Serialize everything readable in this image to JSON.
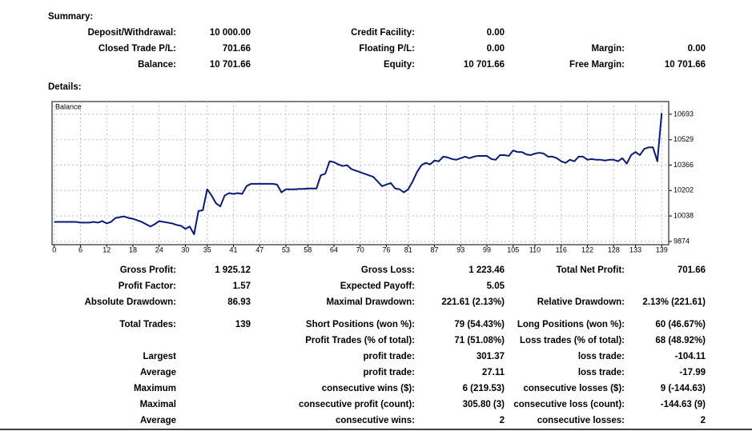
{
  "summary": {
    "title": "Summary:",
    "rows": [
      [
        {
          "label": "Deposit/Withdrawal:",
          "value": "10 000.00"
        },
        {
          "label": "Credit Facility:",
          "value": "0.00"
        },
        null
      ],
      [
        {
          "label": "Closed Trade P/L:",
          "value": "701.66"
        },
        {
          "label": "Floating P/L:",
          "value": "0.00"
        },
        {
          "label": "Margin:",
          "value": "0.00"
        }
      ],
      [
        {
          "label": "Balance:",
          "value": "10 701.66"
        },
        {
          "label": "Equity:",
          "value": "10 701.66"
        },
        {
          "label": "Free Margin:",
          "value": "10 701.66"
        }
      ]
    ]
  },
  "details": {
    "title": "Details:"
  },
  "chart_data": {
    "type": "line",
    "series": [
      {
        "name": "Balance",
        "color": "#0b1a78",
        "values": [
          10000,
          10000,
          10000,
          10000,
          10000,
          10000,
          9995,
          9995,
          9995,
          10000,
          9995,
          10005,
          9990,
          10000,
          10025,
          10030,
          10035,
          10025,
          10020,
          10010,
          10000,
          9985,
          9970,
          9985,
          10005,
          10000,
          9995,
          9990,
          9980,
          9975,
          9955,
          9970,
          9920,
          10070,
          10075,
          10210,
          10170,
          10120,
          10100,
          10170,
          10185,
          10180,
          10185,
          10180,
          10230,
          10245,
          10245,
          10245,
          10245,
          10245,
          10245,
          10240,
          10190,
          10210,
          10210,
          10210,
          10212,
          10212,
          10215,
          10215,
          10215,
          10300,
          10310,
          10390,
          10385,
          10370,
          10360,
          10365,
          10340,
          10330,
          10320,
          10310,
          10300,
          10290,
          10260,
          10230,
          10240,
          10250,
          10215,
          10210,
          10190,
          10210,
          10260,
          10320,
          10365,
          10380,
          10370,
          10395,
          10390,
          10420,
          10415,
          10405,
          10400,
          10410,
          10420,
          10410,
          10420,
          10425,
          10425,
          10425,
          10405,
          10400,
          10430,
          10430,
          10425,
          10460,
          10450,
          10450,
          10435,
          10430,
          10440,
          10445,
          10440,
          10420,
          10420,
          10410,
          10390,
          10380,
          10400,
          10390,
          10420,
          10420,
          10400,
          10405,
          10400,
          10400,
          10395,
          10400,
          10400,
          10390,
          10410,
          10375,
          10430,
          10450,
          10430,
          10470,
          10480,
          10480,
          10390,
          10701.66
        ]
      }
    ],
    "x": [
      0,
      1,
      2,
      3,
      4,
      5,
      6,
      7,
      8,
      9,
      10,
      11,
      12,
      13,
      14,
      15,
      16,
      17,
      18,
      19,
      20,
      21,
      22,
      23,
      24,
      25,
      26,
      27,
      28,
      29,
      30,
      31,
      32,
      33,
      34,
      35,
      36,
      37,
      38,
      39,
      40,
      41,
      42,
      43,
      44,
      45,
      46,
      47,
      48,
      49,
      50,
      51,
      52,
      53,
      54,
      55,
      56,
      57,
      58,
      59,
      60,
      61,
      62,
      63,
      64,
      65,
      66,
      67,
      68,
      69,
      70,
      71,
      72,
      73,
      74,
      75,
      76,
      77,
      78,
      79,
      80,
      81,
      82,
      83,
      84,
      85,
      86,
      87,
      88,
      89,
      90,
      91,
      92,
      93,
      94,
      95,
      96,
      97,
      98,
      99,
      100,
      101,
      102,
      103,
      104,
      105,
      106,
      107,
      108,
      109,
      110,
      111,
      112,
      113,
      114,
      115,
      116,
      117,
      118,
      119,
      120,
      121,
      122,
      123,
      124,
      125,
      126,
      127,
      128,
      129,
      130,
      131,
      132,
      133,
      134,
      135,
      136,
      137,
      138,
      139
    ],
    "xlim": [
      -0.5,
      140.6
    ],
    "xticks": [
      0,
      6,
      12,
      18,
      24,
      30,
      35,
      41,
      47,
      53,
      58,
      64,
      70,
      76,
      81,
      87,
      93,
      99,
      105,
      110,
      116,
      122,
      128,
      133,
      139
    ],
    "ylim": [
      9853,
      10775
    ],
    "yticks": [
      9874,
      10038,
      10202,
      10366,
      10529,
      10693
    ],
    "grid": true
  },
  "stats": {
    "rows": [
      [
        {
          "label": "Gross Profit:",
          "value": "1 925.12"
        },
        {
          "label": "Gross Loss:",
          "value": "1 223.46"
        },
        {
          "label": "Total Net Profit:",
          "value": "701.66"
        }
      ],
      [
        {
          "label": "Profit Factor:",
          "value": "1.57"
        },
        {
          "label": "Expected Payoff:",
          "value": "5.05"
        },
        null
      ],
      [
        {
          "label": "Absolute Drawdown:",
          "value": "86.93"
        },
        {
          "label": "Maximal Drawdown:",
          "value": "221.61 (2.13%)"
        },
        {
          "label": "Relative Drawdown:",
          "value": "2.13% (221.61)"
        }
      ],
      [
        {
          "label": "Total Trades:",
          "value": "139"
        },
        {
          "label": "Short Positions (won %):",
          "value": "79 (54.43%)"
        },
        {
          "label": "Long Positions (won %):",
          "value": "60 (46.67%)"
        }
      ],
      [
        null,
        {
          "label": "Profit Trades (% of total):",
          "value": "71 (51.08%)"
        },
        {
          "label": "Loss trades (% of total):",
          "value": "68 (48.92%)"
        }
      ],
      [
        {
          "label": "Largest"
        },
        {
          "label": "profit trade:",
          "value": "301.37"
        },
        {
          "label": "loss trade:",
          "value": "-104.11"
        }
      ],
      [
        {
          "label": "Average"
        },
        {
          "label": "profit trade:",
          "value": "27.11"
        },
        {
          "label": "loss trade:",
          "value": "-17.99"
        }
      ],
      [
        {
          "label": "Maximum"
        },
        {
          "label": "consecutive wins ($):",
          "value": "6 (219.53)"
        },
        {
          "label": "consecutive losses ($):",
          "value": "9 (-144.63)"
        }
      ],
      [
        {
          "label": "Maximal"
        },
        {
          "label": "consecutive profit (count):",
          "value": "305.80 (3)"
        },
        {
          "label": "consecutive loss (count):",
          "value": "-144.63 (9)"
        }
      ],
      [
        {
          "label": "Average"
        },
        {
          "label": "consecutive wins:",
          "value": "2"
        },
        {
          "label": "consecutive losses:",
          "value": "2"
        }
      ]
    ]
  }
}
